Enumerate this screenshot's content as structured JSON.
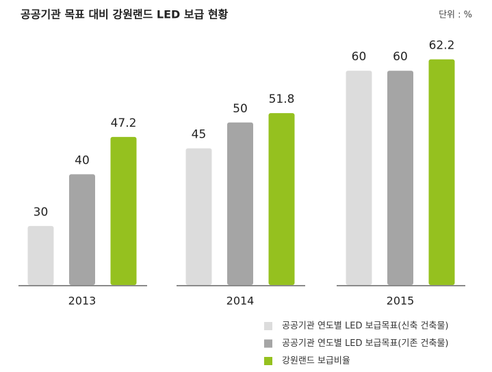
{
  "chart_data": {
    "type": "bar",
    "title": "공공기관 목표 대비 강원랜드 LED 보급 현황",
    "unit": "단위 : %",
    "categories": [
      "2013",
      "2014",
      "2015"
    ],
    "series": [
      {
        "name": "공공기관 연도별 LED 보급목표(신축 건축물)",
        "color": "#dcdcdc",
        "values": [
          30,
          45,
          60
        ]
      },
      {
        "name": "공공기관 연도별 LED 보급목표(기존 건축물)",
        "color": "#a5a5a5",
        "values": [
          40,
          50,
          60
        ]
      },
      {
        "name": "강원랜드 보급비율",
        "color": "#95c11f",
        "values": [
          47.2,
          51.8,
          62.2
        ]
      }
    ],
    "ylim": [
      18.6,
      64
    ],
    "legend": "bottom-right"
  }
}
